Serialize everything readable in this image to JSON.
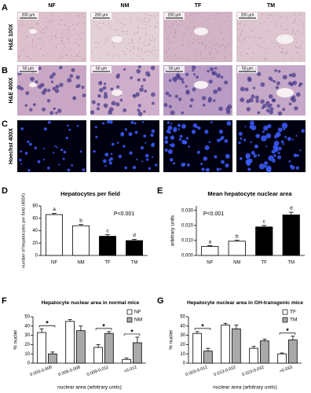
{
  "figure": {
    "panel_labels": [
      "A",
      "B",
      "C",
      "D",
      "E",
      "F",
      "G"
    ],
    "columns": [
      "NF",
      "NM",
      "TF",
      "TM"
    ],
    "rows": [
      {
        "label": "H&E 100X",
        "scale": "200 µm"
      },
      {
        "label": "H&E 400X",
        "scale": "50 µm"
      },
      {
        "label": "Hoechst 400X"
      }
    ]
  },
  "chart_data": [
    {
      "type": "bar",
      "title": "Hepatocytes per field",
      "ylabel": "number of hepatocytes per field (400X)",
      "annotation": "P<0.001",
      "categories": [
        "NF",
        "NM",
        "TF",
        "TM"
      ],
      "values": [
        66,
        48,
        31,
        24
      ],
      "errors": [
        2,
        2,
        2.5,
        2
      ],
      "letters": [
        "a",
        "b",
        "c",
        "d"
      ],
      "colors": [
        "#ffffff",
        "#ffffff",
        "#000000",
        "#000000"
      ],
      "ylim": [
        0,
        80
      ],
      "yticks": [
        0,
        20,
        40,
        60,
        80
      ]
    },
    {
      "type": "bar",
      "title": "Mean hepatocyte nuclear area",
      "ylabel": "arbitrary units",
      "annotation": "P<0.001",
      "categories": [
        "NF",
        "NM",
        "TF",
        "TM"
      ],
      "values": [
        0.006,
        0.0095,
        0.019,
        0.027
      ],
      "errors": [
        0.0005,
        0.0006,
        0.001,
        0.0018
      ],
      "letters": [
        "a",
        "b",
        "c",
        "d"
      ],
      "colors": [
        "#ffffff",
        "#ffffff",
        "#000000",
        "#000000"
      ],
      "ylim": [
        0,
        0.033
      ],
      "yticks": [
        {
          "value": 0,
          "label": "0.000"
        },
        {
          "value": 0.01,
          "label": "0.010"
        },
        {
          "value": 0.02,
          "label": "0.020"
        },
        {
          "value": 0.03,
          "label": "0.030"
        }
      ]
    },
    {
      "type": "grouped-bar",
      "title": "Hepatocyte nuclear area in normal mice",
      "xlabel": "nuclear area (arbitrary units)",
      "ylabel": "% nuclei",
      "categories": [
        "0.003-0.005",
        "0.006-0.008",
        "0.009-0.011",
        ">0.012"
      ],
      "series": [
        {
          "name": "NF",
          "color": "#ffffff",
          "values": [
            33,
            45,
            17,
            4
          ],
          "errors": [
            4,
            2,
            3,
            1.5
          ]
        },
        {
          "name": "NM",
          "color": "#a9a9a9",
          "values": [
            10,
            35,
            32,
            22
          ],
          "errors": [
            2,
            5,
            2,
            6
          ]
        }
      ],
      "significance": [
        "*",
        null,
        "*",
        "*"
      ],
      "ylim": [
        0,
        50
      ],
      "yticks": [
        0,
        10,
        20,
        30,
        40,
        50
      ],
      "legend": "upper right"
    },
    {
      "type": "grouped-bar",
      "title": "Hepatocyte nuclear area in GH-transgenic mice",
      "xlabel": "nuclear area (arbitrary units)",
      "ylabel": "% nuclei",
      "categories": [
        "0.003-0.012",
        "0.013-0.022",
        "0.023-0.032",
        ">0.033"
      ],
      "series": [
        {
          "name": "TF",
          "color": "#ffffff",
          "values": [
            32,
            41,
            16,
            10
          ],
          "errors": [
            2,
            2,
            2,
            1
          ]
        },
        {
          "name": "TM",
          "color": "#a9a9a9",
          "values": [
            13,
            37,
            24,
            25
          ],
          "errors": [
            3,
            4,
            2,
            4
          ]
        }
      ],
      "significance": [
        "*",
        null,
        null,
        "*"
      ],
      "ylim": [
        0,
        50
      ],
      "yticks": [
        0,
        10,
        20,
        30,
        40,
        50
      ],
      "legend": "upper right"
    }
  ]
}
